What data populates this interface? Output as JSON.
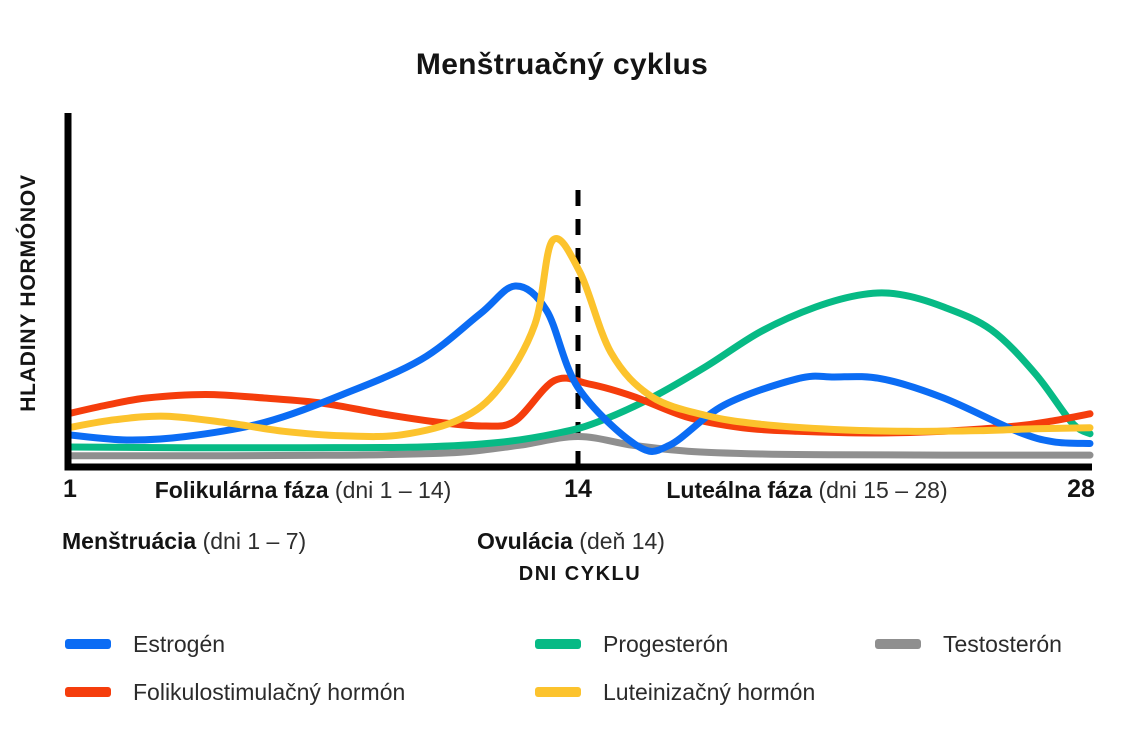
{
  "title": "Menštruačný cyklus",
  "y_axis_label": "HLADINY HORMÓNOV",
  "x_axis_label": "DNI CYKLU",
  "x_ticks": {
    "start": "1",
    "mid": "14",
    "end": "28"
  },
  "phases": {
    "follicular": {
      "name": "Folikulárna fáza",
      "range": "(dni 1 – 14)"
    },
    "luteal": {
      "name": "Luteálna fáza",
      "range": "(dni 15 – 28)"
    },
    "menstruation": {
      "name": "Menštruácia",
      "range": "(dni 1 – 7)"
    },
    "ovulation": {
      "name": "Ovulácia",
      "range": "(deň 14)"
    }
  },
  "legend": [
    {
      "label": "Estrogén",
      "color": "#0B6CF4"
    },
    {
      "label": "Folikulostimulačný hormón",
      "color": "#F53D0C"
    },
    {
      "label": "Progesterón",
      "color": "#07BA85"
    },
    {
      "label": "Luteinizačný hormón",
      "color": "#FCC32D"
    },
    {
      "label": "Testosterón",
      "color": "#8F8F8F"
    }
  ],
  "chart_data": {
    "type": "line",
    "title": "Menštruačný cyklus",
    "xlabel": "DNI CYKLU",
    "ylabel": "HLADINY HORMÓNOV",
    "x_range": [
      1,
      28
    ],
    "x_axis_ticks": [
      "1",
      "14",
      "28"
    ],
    "y_axis_note": "unlabeled qualitative axis; values normalized 0–100 relative hormone level",
    "grid": false,
    "legend_position": "bottom",
    "ovulation_line": {
      "day": 14,
      "style": "dashed",
      "color": "#000000"
    },
    "series": [
      {
        "id": "testosteron",
        "name": "Testosterón",
        "color": "#8F8F8F",
        "points": [
          [
            1,
            2.5
          ],
          [
            4,
            2.5
          ],
          [
            7,
            2.6
          ],
          [
            9,
            2.8
          ],
          [
            11,
            3.5
          ],
          [
            12.5,
            5.5
          ],
          [
            14,
            8
          ],
          [
            15.5,
            5.5
          ],
          [
            17,
            3.8
          ],
          [
            19,
            3
          ],
          [
            21,
            2.8
          ],
          [
            24,
            2.7
          ],
          [
            28,
            2.7
          ]
        ]
      },
      {
        "id": "progesteron",
        "name": "Progesterón",
        "color": "#07BA85",
        "points": [
          [
            1,
            5
          ],
          [
            4,
            4.8
          ],
          [
            7,
            4.8
          ],
          [
            10,
            5
          ],
          [
            12,
            6.3
          ],
          [
            13.5,
            9
          ],
          [
            14.5,
            12
          ],
          [
            16,
            19
          ],
          [
            17.5,
            28
          ],
          [
            19,
            38
          ],
          [
            20.5,
            45
          ],
          [
            21.8,
            48.6
          ],
          [
            22.8,
            48.6
          ],
          [
            24,
            45
          ],
          [
            25.3,
            38.5
          ],
          [
            26.5,
            26
          ],
          [
            27.5,
            12
          ],
          [
            28,
            8.8
          ]
        ]
      },
      {
        "id": "fsh",
        "name": "Folikulostimulačný hormón",
        "color": "#F53D0C",
        "points": [
          [
            1,
            14.5
          ],
          [
            2,
            17
          ],
          [
            3,
            19
          ],
          [
            4.5,
            20
          ],
          [
            6,
            19
          ],
          [
            7.5,
            17.5
          ],
          [
            9,
            14.5
          ],
          [
            10.5,
            12
          ],
          [
            11.6,
            11
          ],
          [
            12.4,
            12.5
          ],
          [
            13.4,
            24
          ],
          [
            14.3,
            23
          ],
          [
            15.5,
            19.5
          ],
          [
            17,
            13.5
          ],
          [
            18.5,
            10.5
          ],
          [
            20,
            9.5
          ],
          [
            22,
            9
          ],
          [
            24,
            9.5
          ],
          [
            26,
            11
          ],
          [
            27,
            12.5
          ],
          [
            28,
            14.5
          ]
        ]
      },
      {
        "id": "estrogen",
        "name": "Estrogén",
        "color": "#0B6CF4",
        "points": [
          [
            1,
            8.5
          ],
          [
            2.5,
            7
          ],
          [
            4,
            8
          ],
          [
            6,
            12
          ],
          [
            8,
            20
          ],
          [
            10,
            30
          ],
          [
            11.5,
            43
          ],
          [
            12.4,
            51
          ],
          [
            13.2,
            44
          ],
          [
            14,
            22
          ],
          [
            15.6,
            5.5
          ],
          [
            16.5,
            5.5
          ],
          [
            18,
            17
          ],
          [
            20,
            24.5
          ],
          [
            21,
            25
          ],
          [
            22.3,
            24.5
          ],
          [
            24,
            19
          ],
          [
            26,
            9.5
          ],
          [
            27,
            6.5
          ],
          [
            28,
            6
          ]
        ]
      },
      {
        "id": "lh",
        "name": "Luteinizačný hormón",
        "color": "#FCC32D",
        "points": [
          [
            1,
            10.5
          ],
          [
            2.2,
            12.8
          ],
          [
            3.5,
            13.8
          ],
          [
            5,
            12
          ],
          [
            6.5,
            9.5
          ],
          [
            8,
            8.2
          ],
          [
            9.5,
            8.5
          ],
          [
            11,
            13
          ],
          [
            12,
            22
          ],
          [
            12.9,
            40
          ],
          [
            13.35,
            64
          ],
          [
            14.05,
            55
          ],
          [
            14.9,
            32
          ],
          [
            16,
            19.5
          ],
          [
            17.5,
            14
          ],
          [
            19,
            11.5
          ],
          [
            21,
            10
          ],
          [
            23,
            9.5
          ],
          [
            25,
            9.7
          ],
          [
            26.5,
            10.2
          ],
          [
            28,
            10.5
          ]
        ]
      }
    ]
  }
}
